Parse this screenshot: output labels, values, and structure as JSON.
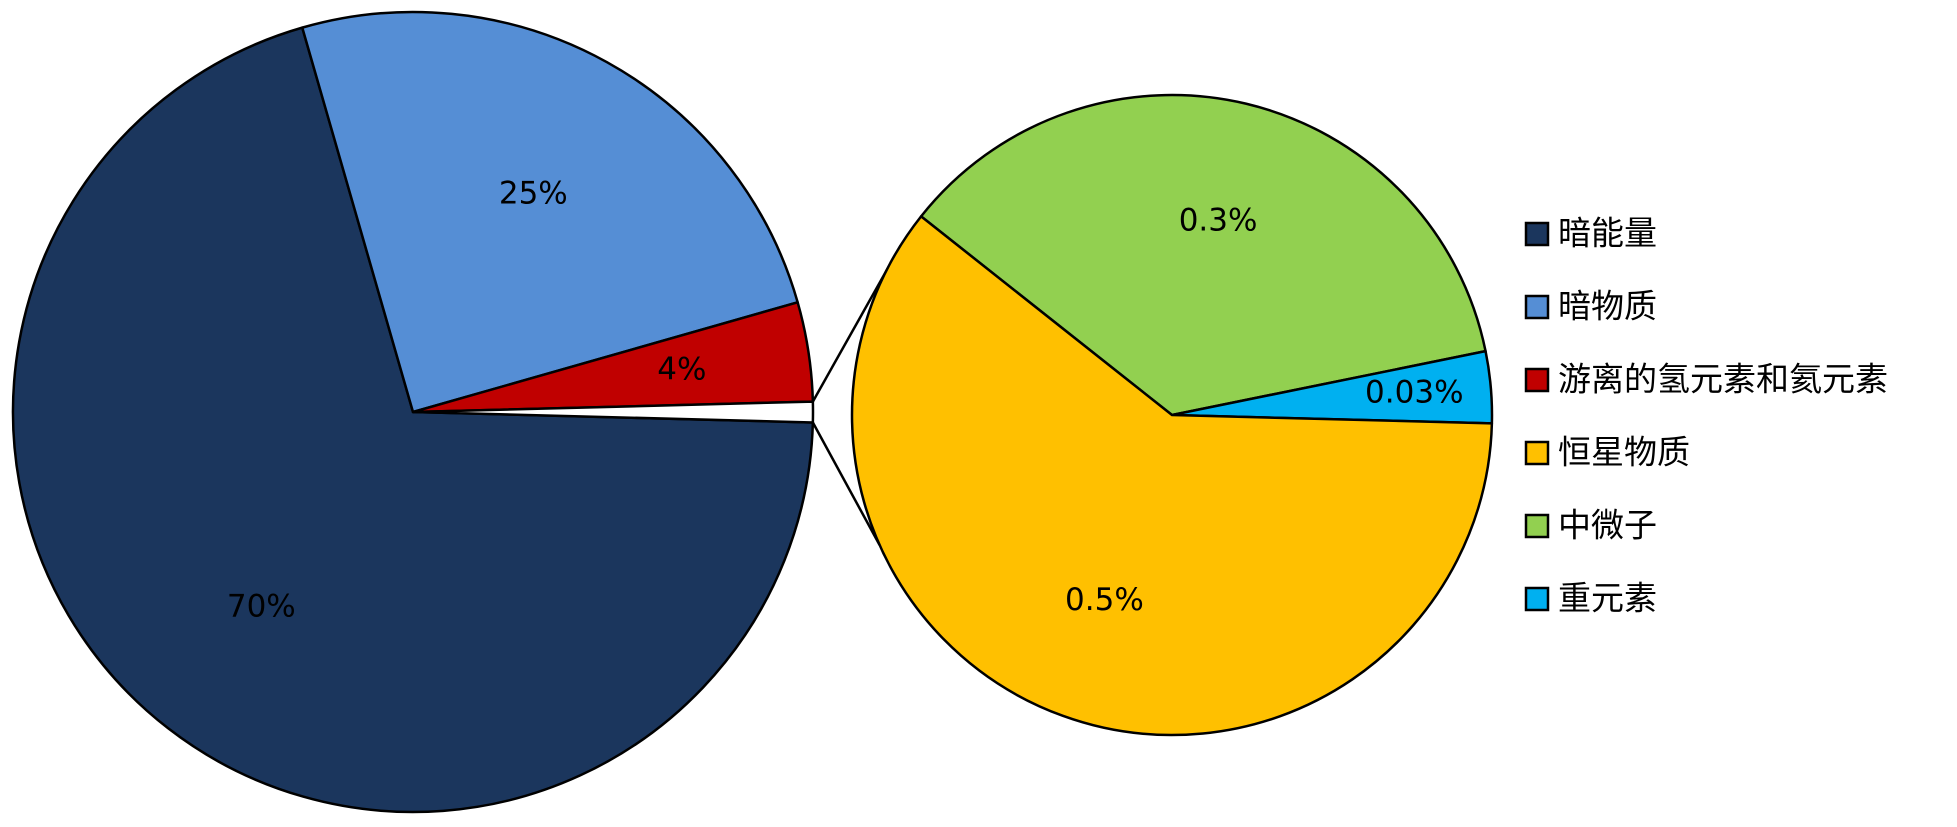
{
  "chart_data": {
    "type": "pie",
    "subtype": "pie-of-pie",
    "title": "",
    "legend_position": "right",
    "main_pie": {
      "slices": [
        {
          "key": "dark_energy",
          "value": 70,
          "label": "70%",
          "color": "#1b365d"
        },
        {
          "key": "dark_matter",
          "value": 25,
          "label": "25%",
          "color": "#558ed5"
        },
        {
          "key": "free_hydrogen_helium",
          "value": 4,
          "label": "4%",
          "color": "#c00000"
        },
        {
          "key": "other",
          "value": 0.83,
          "label": "",
          "color": "#ffffff"
        }
      ]
    },
    "secondary_pie": {
      "slices": [
        {
          "key": "neutrinos",
          "value": 0.3,
          "label": "0.3%",
          "color": "#92d050"
        },
        {
          "key": "heavy_elements",
          "value": 0.03,
          "label": "0.03%",
          "color": "#00b0f0"
        },
        {
          "key": "stellar_matter",
          "value": 0.5,
          "label": "0.5%",
          "color": "#ffc000"
        }
      ]
    },
    "legend": [
      {
        "label": "暗能量",
        "color": "#1b365d"
      },
      {
        "label": "暗物质",
        "color": "#558ed5"
      },
      {
        "label": "游离的氢元素和氦元素",
        "color": "#c00000"
      },
      {
        "label": "恒星物质",
        "color": "#ffc000"
      },
      {
        "label": "中微子",
        "color": "#92d050"
      },
      {
        "label": "重元素",
        "color": "#00b0f0"
      }
    ]
  }
}
